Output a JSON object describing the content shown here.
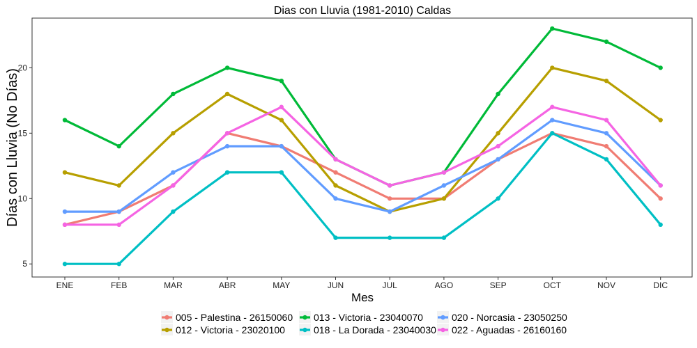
{
  "chart_data": {
    "type": "line",
    "title": "Dias con Lluvia (1981-2010)  Caldas",
    "xlabel": "Mes",
    "ylabel": "Días con Lluvia (No Días)",
    "categories": [
      "ENE",
      "FEB",
      "MAR",
      "ABR",
      "MAY",
      "JUN",
      "JUL",
      "AGO",
      "SEP",
      "OCT",
      "NOV",
      "DIC"
    ],
    "ylim": [
      4,
      23.8
    ],
    "yticks": [
      5,
      10,
      15,
      20
    ],
    "grid": false,
    "legend_position": "bottom",
    "series": [
      {
        "name": "005 - Palestina - 26150060",
        "color": "#F07C73",
        "values": [
          8,
          9,
          11,
          15,
          14,
          12,
          10,
          10,
          13,
          15,
          14,
          10
        ]
      },
      {
        "name": "012 - Victoria - 23020100",
        "color": "#B79F00",
        "values": [
          12,
          11,
          15,
          18,
          16,
          11,
          9,
          10,
          15,
          20,
          19,
          16
        ]
      },
      {
        "name": "013 - Victoria - 23040070",
        "color": "#00BA38",
        "values": [
          16,
          14,
          18,
          20,
          19,
          13,
          11,
          12,
          18,
          23,
          22,
          20
        ]
      },
      {
        "name": "018 - La Dorada - 23040030",
        "color": "#00BFC4",
        "values": [
          5,
          5,
          9,
          12,
          12,
          7,
          7,
          7,
          10,
          15,
          13,
          8
        ]
      },
      {
        "name": "020 - Norcasia - 23050250",
        "color": "#619CFF",
        "values": [
          9,
          9,
          12,
          14,
          14,
          10,
          9,
          11,
          13,
          16,
          15,
          11
        ]
      },
      {
        "name": "022 - Aguadas - 26160160",
        "color": "#F564E3",
        "values": [
          8,
          8,
          11,
          15,
          17,
          13,
          11,
          12,
          14,
          17,
          16,
          11
        ]
      }
    ]
  }
}
